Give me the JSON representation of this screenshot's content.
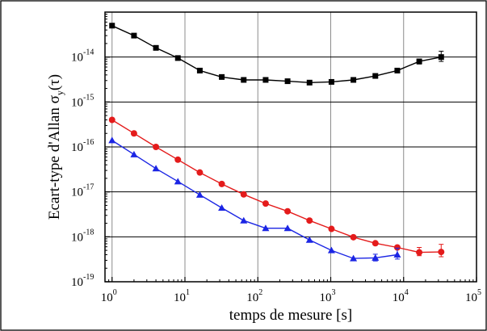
{
  "chart_data": {
    "type": "scatter",
    "xlabel": "temps de mesure [s]",
    "ylabel": "Ecart-type d'Allan σ",
    "ylabel_sub": "y",
    "ylabel_tail": "(τ)",
    "x_scale": "log",
    "y_scale": "log",
    "xlim": [
      0.8,
      100000
    ],
    "ylim": [
      1e-19,
      1e-13
    ],
    "x_ticks": [
      {
        "base": "10",
        "exp": "0",
        "value": 1
      },
      {
        "base": "10",
        "exp": "1",
        "value": 10
      },
      {
        "base": "10",
        "exp": "2",
        "value": 100
      },
      {
        "base": "10",
        "exp": "3",
        "value": 1000
      },
      {
        "base": "10",
        "exp": "4",
        "value": 10000
      },
      {
        "base": "10",
        "exp": "5",
        "value": 100000
      }
    ],
    "y_ticks": [
      {
        "base": "10",
        "exp": "-19",
        "value": 1e-19
      },
      {
        "base": "10",
        "exp": "-18",
        "value": 1e-18
      },
      {
        "base": "10",
        "exp": "-17",
        "value": 1e-17
      },
      {
        "base": "10",
        "exp": "-16",
        "value": 1e-16
      },
      {
        "base": "10",
        "exp": "-15",
        "value": 1e-15
      },
      {
        "base": "10",
        "exp": "-14",
        "value": 1e-14
      }
    ],
    "grid": true,
    "series": [
      {
        "marker": "square",
        "color": "#000000",
        "x": [
          1,
          2,
          4,
          8,
          16,
          32,
          64,
          128,
          256,
          512,
          1024,
          2048,
          4096,
          8192,
          16384,
          32768
        ],
        "y": [
          5e-14,
          3e-14,
          1.6e-14,
          9.5e-15,
          5e-15,
          3.6e-15,
          3.1e-15,
          3.1e-15,
          2.9e-15,
          2.7e-15,
          2.8e-15,
          3.1e-15,
          3.8e-15,
          5e-15,
          8e-15,
          1e-14
        ],
        "err_hi": [
          null,
          null,
          null,
          null,
          null,
          null,
          null,
          null,
          null,
          null,
          null,
          null,
          null,
          null,
          9e-15,
          1.35e-14
        ],
        "err_lo": [
          null,
          null,
          null,
          null,
          null,
          null,
          null,
          null,
          null,
          null,
          null,
          null,
          null,
          null,
          7e-15,
          8e-15
        ]
      },
      {
        "marker": "circle",
        "color": "#e41b1b",
        "x": [
          1,
          2,
          4,
          8,
          16,
          32,
          64,
          128,
          256,
          512,
          1024,
          2048,
          4096,
          8192,
          16384,
          32768
        ],
        "y": [
          4e-16,
          2e-16,
          1e-16,
          5.2e-17,
          2.7e-17,
          1.5e-17,
          8.8e-18,
          5.5e-18,
          3.7e-18,
          2.3e-18,
          1.5e-18,
          9.8e-19,
          7.2e-19,
          5.8e-19,
          4.5e-19,
          4.6e-19
        ],
        "err_hi": [
          null,
          null,
          null,
          null,
          null,
          null,
          null,
          null,
          null,
          null,
          null,
          null,
          null,
          null,
          5.8e-19,
          6.8e-19
        ],
        "err_lo": [
          null,
          null,
          null,
          null,
          null,
          null,
          null,
          null,
          null,
          null,
          null,
          null,
          null,
          null,
          3.8e-19,
          3.6e-19
        ]
      },
      {
        "marker": "triangle",
        "color": "#1b25e4",
        "x": [
          1,
          2,
          4,
          8,
          16,
          32,
          64,
          128,
          256,
          512,
          1024,
          2048,
          4096,
          8192
        ],
        "y": [
          1.4e-16,
          6.8e-17,
          3.3e-17,
          1.7e-17,
          8.6e-18,
          4.4e-18,
          2.3e-18,
          1.55e-18,
          1.55e-18,
          8.5e-19,
          5e-19,
          3.3e-19,
          3.4e-19,
          4e-19
        ],
        "err_hi": [
          null,
          null,
          null,
          null,
          null,
          null,
          null,
          null,
          null,
          null,
          null,
          null,
          4.1e-19,
          5.6e-19
        ],
        "err_lo": [
          null,
          null,
          null,
          null,
          null,
          null,
          null,
          null,
          null,
          null,
          null,
          null,
          2.9e-19,
          3.2e-19
        ]
      }
    ]
  }
}
